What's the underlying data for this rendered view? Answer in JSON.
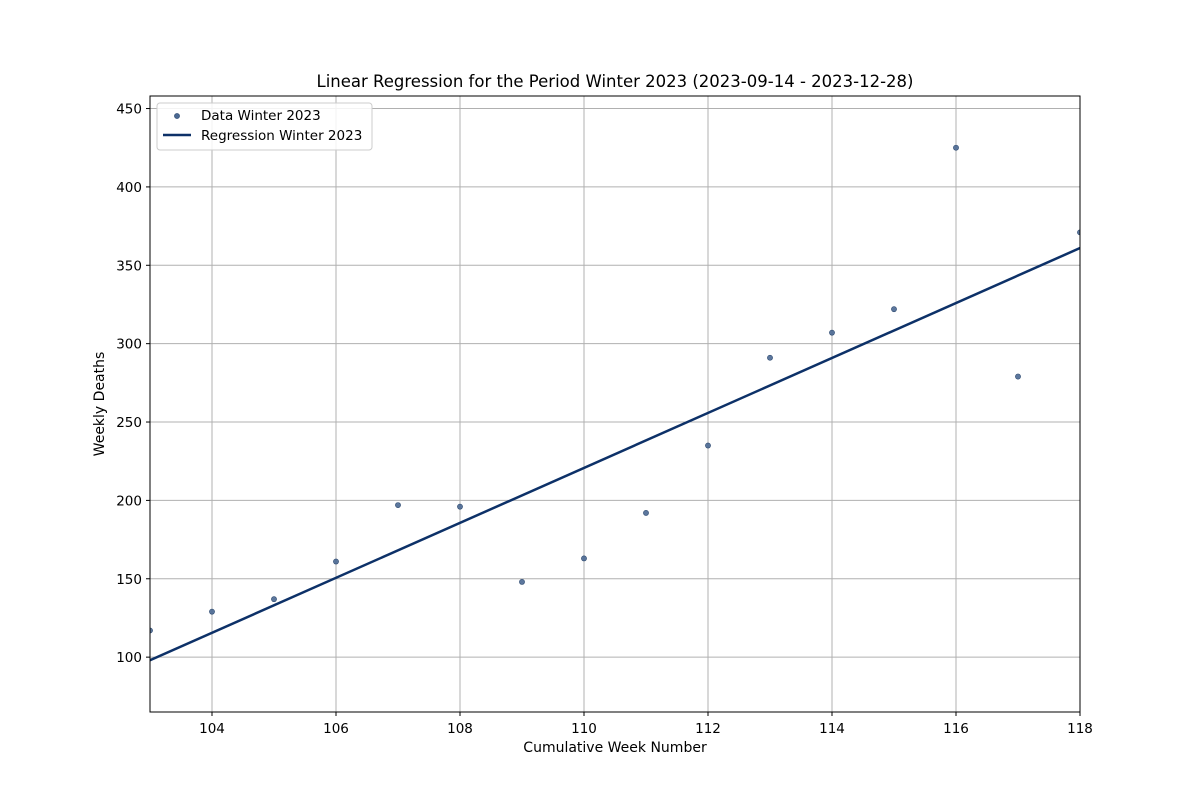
{
  "chart_data": {
    "type": "scatter",
    "title": "Linear Regression for the Period Winter 2023 (2023-09-14 - 2023-12-28)",
    "xlabel": "Cumulative Week Number",
    "ylabel": "Weekly Deaths",
    "xlim": [
      103,
      118
    ],
    "ylim": [
      65,
      458
    ],
    "xticks": [
      104,
      106,
      108,
      110,
      112,
      114,
      116,
      118
    ],
    "yticks": [
      100,
      150,
      200,
      250,
      300,
      350,
      400,
      450
    ],
    "grid": true,
    "legend_position": "top-left",
    "series": [
      {
        "name": "Data Winter 2023",
        "kind": "scatter",
        "color": "#4a6892",
        "x": [
          103,
          104,
          105,
          106,
          107,
          108,
          109,
          110,
          111,
          112,
          113,
          114,
          115,
          116,
          117,
          118
        ],
        "y": [
          117,
          129,
          137,
          161,
          197,
          196,
          148,
          163,
          192,
          235,
          291,
          307,
          322,
          425,
          279,
          371
        ]
      },
      {
        "name": "Regression Winter 2023",
        "kind": "line",
        "color": "#0d3168",
        "x": [
          103,
          118
        ],
        "y": [
          98,
          361
        ]
      }
    ]
  }
}
